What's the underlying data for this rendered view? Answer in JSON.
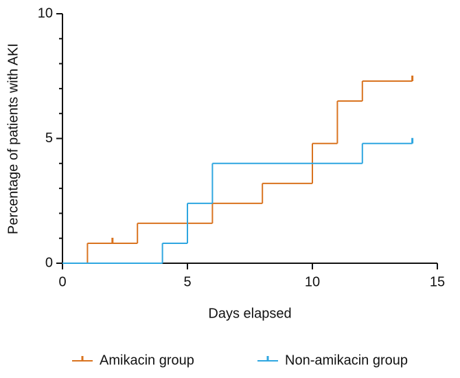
{
  "chart_data": {
    "type": "step",
    "x_label": "Days elapsed",
    "y_label": "Percentage of patients with AKI",
    "xlim": [
      0,
      15
    ],
    "xticks": [
      0,
      5,
      10,
      15
    ],
    "ylim": [
      0,
      10
    ],
    "yticks": [
      0,
      5,
      10
    ],
    "yminorticks": [
      1,
      2,
      3,
      4,
      6,
      7,
      8,
      9
    ],
    "legend": "bottom",
    "series": [
      {
        "name": "Amikacin group",
        "color": "#d9731f",
        "x": [
          0,
          1,
          3,
          6,
          8,
          10,
          11,
          12,
          14
        ],
        "values": [
          0,
          0.8,
          1.6,
          2.4,
          3.2,
          4.8,
          6.5,
          7.3,
          7.3
        ],
        "censored": {
          "x": [
            2,
            14
          ],
          "values": [
            0.8,
            7.3
          ]
        }
      },
      {
        "name": "Non-amikacin group",
        "color": "#2ea6e0",
        "x": [
          0,
          4,
          5,
          6,
          12,
          14
        ],
        "values": [
          0,
          0.8,
          2.4,
          4.0,
          4.8,
          4.8
        ],
        "censored": {
          "x": [
            14
          ],
          "values": [
            4.8
          ]
        }
      }
    ]
  }
}
